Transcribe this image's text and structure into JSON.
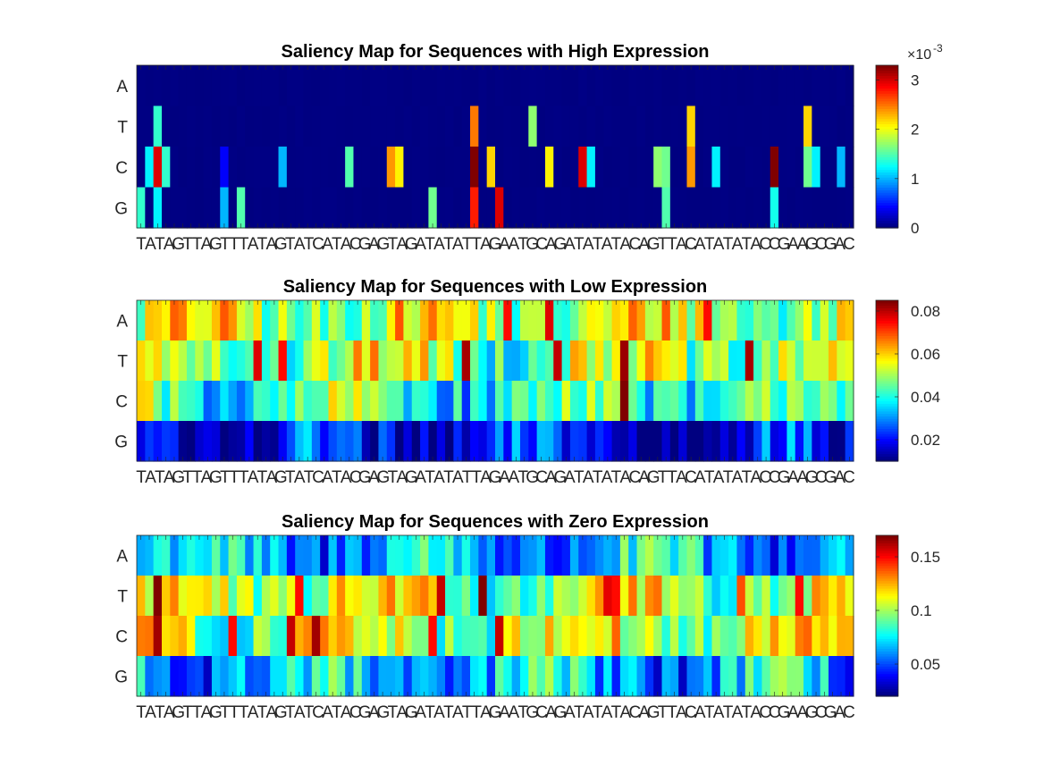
{
  "figure": {
    "colormap": "jet",
    "background": "#ffffff"
  },
  "chart_data": [
    {
      "type": "heatmap",
      "title": "Saliency Map for Sequences with High Expression",
      "rows": [
        "A",
        "T",
        "C",
        "G"
      ],
      "sequence": "TATAGTTAGTTTATAGTATCATACGAGTAGATATATTAGAATGCAGATATATACAGTTACATATATACCGAAGCGAC",
      "clim": [
        0,
        0.0033
      ],
      "colorbar": {
        "ticks": [
          0,
          1,
          2,
          3
        ],
        "tick_labels": [
          "0",
          "1",
          "2",
          "3"
        ],
        "exponent_label": "×10",
        "exponent": "-3"
      },
      "values_note": "sparse: near-zero except for highlighted positions",
      "highlights": [
        {
          "row": "T",
          "pos": 2,
          "value": 0.0014
        },
        {
          "row": "C",
          "pos": 1,
          "value": 0.0012
        },
        {
          "row": "C",
          "pos": 2,
          "value": 0.003
        },
        {
          "row": "C",
          "pos": 3,
          "value": 0.0014
        },
        {
          "row": "G",
          "pos": 0,
          "value": 0.0014
        },
        {
          "row": "G",
          "pos": 2,
          "value": 0.0012
        },
        {
          "row": "C",
          "pos": 10,
          "value": 0.0004
        },
        {
          "row": "G",
          "pos": 10,
          "value": 0.001
        },
        {
          "row": "G",
          "pos": 12,
          "value": 0.0015
        },
        {
          "row": "C",
          "pos": 17,
          "value": 0.001
        },
        {
          "row": "C",
          "pos": 25,
          "value": 0.0015
        },
        {
          "row": "C",
          "pos": 30,
          "value": 0.0024
        },
        {
          "row": "C",
          "pos": 31,
          "value": 0.0021
        },
        {
          "row": "G",
          "pos": 35,
          "value": 0.0016
        },
        {
          "row": "T",
          "pos": 40,
          "value": 0.0025
        },
        {
          "row": "C",
          "pos": 40,
          "value": 0.0033
        },
        {
          "row": "G",
          "pos": 40,
          "value": 0.0028
        },
        {
          "row": "C",
          "pos": 42,
          "value": 0.0022
        },
        {
          "row": "G",
          "pos": 43,
          "value": 0.003
        },
        {
          "row": "T",
          "pos": 47,
          "value": 0.0017
        },
        {
          "row": "C",
          "pos": 49,
          "value": 0.0021
        },
        {
          "row": "C",
          "pos": 53,
          "value": 0.003
        },
        {
          "row": "C",
          "pos": 54,
          "value": 0.0012
        },
        {
          "row": "C",
          "pos": 62,
          "value": 0.0017
        },
        {
          "row": "C",
          "pos": 63,
          "value": 0.0016
        },
        {
          "row": "G",
          "pos": 63,
          "value": 0.0015
        },
        {
          "row": "T",
          "pos": 66,
          "value": 0.0022
        },
        {
          "row": "C",
          "pos": 66,
          "value": 0.0024
        },
        {
          "row": "C",
          "pos": 69,
          "value": 0.0012
        },
        {
          "row": "C",
          "pos": 76,
          "value": 0.0033
        },
        {
          "row": "G",
          "pos": 76,
          "value": 0.0013
        },
        {
          "row": "T",
          "pos": 80,
          "value": 0.0022
        },
        {
          "row": "C",
          "pos": 80,
          "value": 0.0016
        },
        {
          "row": "C",
          "pos": 81,
          "value": 0.0012
        },
        {
          "row": "C",
          "pos": 84,
          "value": 0.001
        }
      ]
    },
    {
      "type": "heatmap",
      "title": "Saliency Map for Sequences with Low Expression",
      "rows": [
        "A",
        "T",
        "C",
        "G"
      ],
      "sequence": "TATAGTTAGTTTATAGTATCATACGAGTAGATATATTAGAATGCAGATATATACAGTTACATATATACCGAAGCGAC",
      "clim": [
        0.01,
        0.085
      ],
      "colorbar": {
        "ticks": [
          0.02,
          0.04,
          0.06,
          0.08
        ],
        "tick_labels": [
          "0.02",
          "0.04",
          "0.06",
          "0.08"
        ]
      },
      "row_means": {
        "A": 0.052,
        "T": 0.05,
        "C": 0.042,
        "G": 0.018
      },
      "highlights": [
        {
          "row": "T",
          "pos": 14,
          "value": 0.078
        },
        {
          "row": "T",
          "pos": 17,
          "value": 0.075
        },
        {
          "row": "T",
          "pos": 39,
          "value": 0.082
        },
        {
          "row": "A",
          "pos": 44,
          "value": 0.075
        },
        {
          "row": "T",
          "pos": 50,
          "value": 0.08
        },
        {
          "row": "A",
          "pos": 49,
          "value": 0.078
        },
        {
          "row": "T",
          "pos": 58,
          "value": 0.083
        },
        {
          "row": "C",
          "pos": 58,
          "value": 0.085
        },
        {
          "row": "T",
          "pos": 73,
          "value": 0.082
        },
        {
          "row": "A",
          "pos": 68,
          "value": 0.075
        }
      ]
    },
    {
      "type": "heatmap",
      "title": "Saliency Map for Sequences with Zero Expression",
      "rows": [
        "A",
        "T",
        "C",
        "G"
      ],
      "sequence": "TATAGTTAGTTTATAGTATCATACGAGTAGATATATTAGAATGCAGATATATACAGTTACATATATACCGAAGCGAC",
      "clim": [
        0.02,
        0.17
      ],
      "colorbar": {
        "ticks": [
          0.05,
          0.1,
          0.15
        ],
        "tick_labels": [
          "0.05",
          "0.1",
          "0.15"
        ]
      },
      "row_means": {
        "A": 0.065,
        "T": 0.105,
        "C": 0.105,
        "G": 0.065
      },
      "highlights": [
        {
          "row": "T",
          "pos": 2,
          "value": 0.17
        },
        {
          "row": "C",
          "pos": 2,
          "value": 0.165
        },
        {
          "row": "C",
          "pos": 11,
          "value": 0.15
        },
        {
          "row": "C",
          "pos": 18,
          "value": 0.16
        },
        {
          "row": "T",
          "pos": 19,
          "value": 0.15
        },
        {
          "row": "C",
          "pos": 21,
          "value": 0.165
        },
        {
          "row": "T",
          "pos": 36,
          "value": 0.16
        },
        {
          "row": "C",
          "pos": 35,
          "value": 0.15
        },
        {
          "row": "T",
          "pos": 41,
          "value": 0.17
        },
        {
          "row": "C",
          "pos": 43,
          "value": 0.16
        },
        {
          "row": "T",
          "pos": 56,
          "value": 0.155
        },
        {
          "row": "T",
          "pos": 57,
          "value": 0.15
        },
        {
          "row": "T",
          "pos": 72,
          "value": 0.14
        },
        {
          "row": "T",
          "pos": 79,
          "value": 0.15
        }
      ]
    }
  ]
}
